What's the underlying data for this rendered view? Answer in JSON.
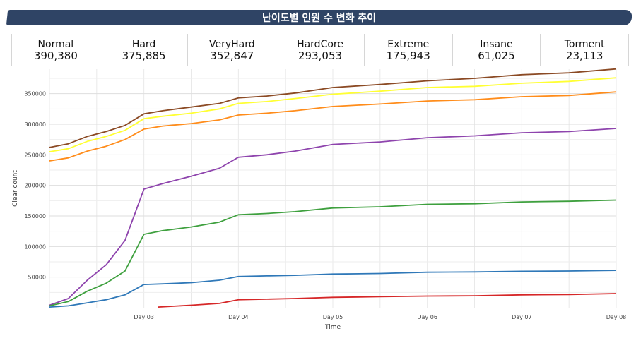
{
  "title": "난이도별 인원 수 변화 추이",
  "stats": [
    {
      "name": "Normal",
      "value": "390,380"
    },
    {
      "name": "Hard",
      "value": "375,885"
    },
    {
      "name": "VeryHard",
      "value": "352,847"
    },
    {
      "name": "HardCore",
      "value": "293,053"
    },
    {
      "name": "Extreme",
      "value": "175,943"
    },
    {
      "name": "Insane",
      "value": "61,025"
    },
    {
      "name": "Torment",
      "value": "23,113"
    }
  ],
  "chart_data": {
    "type": "line",
    "xlabel": "Time",
    "ylabel": "Clear count",
    "xlim": [
      2.0,
      8.0
    ],
    "ylim": [
      0,
      390000
    ],
    "xticks": [
      3,
      4,
      5,
      6,
      7,
      8
    ],
    "xtick_labels": [
      "Day 03",
      "Day 04",
      "Day 05",
      "Day 06",
      "Day 07",
      "Day 08"
    ],
    "yticks": [
      50000,
      100000,
      150000,
      200000,
      250000,
      300000,
      350000
    ],
    "ytick_labels": [
      "50000",
      "100000",
      "150000",
      "200000",
      "250000",
      "300000",
      "350000"
    ],
    "grid": true,
    "series": [
      {
        "color": "#8B4A24",
        "x": [
          2.0,
          2.2,
          2.4,
          2.6,
          2.8,
          3.0,
          3.2,
          3.5,
          3.8,
          4.0,
          4.3,
          4.6,
          5.0,
          5.5,
          6.0,
          6.5,
          7.0,
          7.5,
          8.0
        ],
        "values": [
          262000,
          268000,
          280000,
          288000,
          298000,
          317000,
          322000,
          328000,
          334000,
          343000,
          346000,
          351000,
          360000,
          365000,
          371000,
          375000,
          381000,
          384000,
          390380
        ]
      },
      {
        "color": "#FFFF33",
        "x": [
          2.0,
          2.2,
          2.4,
          2.6,
          2.8,
          3.0,
          3.2,
          3.5,
          3.8,
          4.0,
          4.3,
          4.6,
          5.0,
          5.5,
          6.0,
          6.5,
          7.0,
          7.5,
          8.0
        ],
        "values": [
          255000,
          260000,
          272000,
          280000,
          290000,
          309000,
          313000,
          318000,
          325000,
          334000,
          337000,
          342000,
          349000,
          354000,
          360000,
          362000,
          367000,
          370000,
          375885
        ]
      },
      {
        "color": "#FF8C1A",
        "x": [
          2.0,
          2.2,
          2.4,
          2.6,
          2.8,
          3.0,
          3.2,
          3.5,
          3.8,
          4.0,
          4.3,
          4.6,
          5.0,
          5.5,
          6.0,
          6.5,
          7.0,
          7.5,
          8.0
        ],
        "values": [
          240000,
          245000,
          256000,
          264000,
          275000,
          292000,
          297000,
          301000,
          307000,
          315000,
          318000,
          322000,
          329000,
          333000,
          338000,
          340000,
          345000,
          347000,
          352847
        ]
      },
      {
        "color": "#8E44AD",
        "x": [
          2.0,
          2.2,
          2.4,
          2.6,
          2.8,
          3.0,
          3.2,
          3.5,
          3.8,
          4.0,
          4.3,
          4.6,
          5.0,
          5.5,
          6.0,
          6.5,
          7.0,
          7.5,
          8.0
        ],
        "values": [
          4000,
          15000,
          45000,
          70000,
          110000,
          194000,
          203000,
          215000,
          228000,
          246000,
          250000,
          256000,
          267000,
          271000,
          278000,
          281000,
          286000,
          288000,
          293053
        ]
      },
      {
        "color": "#3EA03E",
        "x": [
          2.0,
          2.2,
          2.4,
          2.6,
          2.8,
          3.0,
          3.2,
          3.5,
          3.8,
          4.0,
          4.3,
          4.6,
          5.0,
          5.5,
          6.0,
          6.5,
          7.0,
          7.5,
          8.0
        ],
        "values": [
          3000,
          10000,
          27000,
          40000,
          60000,
          120000,
          126000,
          132000,
          140000,
          152000,
          154000,
          157000,
          163000,
          165000,
          169000,
          170000,
          173000,
          174000,
          175943
        ]
      },
      {
        "color": "#2F78B8",
        "x": [
          2.0,
          2.2,
          2.4,
          2.6,
          2.8,
          3.0,
          3.2,
          3.5,
          3.8,
          4.0,
          4.3,
          4.6,
          5.0,
          5.5,
          6.0,
          6.5,
          7.0,
          7.5,
          8.0
        ],
        "values": [
          1000,
          3000,
          8000,
          13000,
          21000,
          38000,
          39000,
          41000,
          45000,
          51000,
          52000,
          53000,
          55000,
          56000,
          58000,
          58500,
          59500,
          60000,
          61025
        ]
      },
      {
        "color": "#D62728",
        "x": [
          3.15,
          3.5,
          3.8,
          4.0,
          4.3,
          4.6,
          5.0,
          5.5,
          6.0,
          6.5,
          7.0,
          7.5,
          8.0
        ],
        "values": [
          1000,
          4000,
          7000,
          13000,
          14000,
          15000,
          17000,
          18000,
          19000,
          19500,
          21000,
          21500,
          23113
        ]
      }
    ]
  }
}
